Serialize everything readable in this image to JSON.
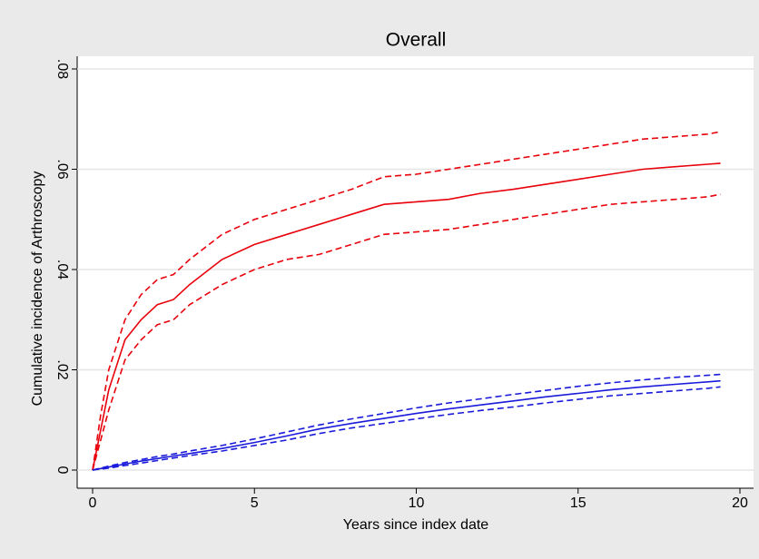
{
  "chart_data": {
    "type": "line",
    "title": "Overall",
    "x_label": "Years since index date",
    "y_label": "Cumulative incidence of Arthroscopy",
    "x": [
      0,
      0.25,
      0.5,
      1,
      1.5,
      2,
      2.5,
      3,
      4,
      5,
      6,
      7,
      8,
      9,
      10,
      11,
      12,
      13,
      14,
      15,
      16,
      17,
      18,
      19,
      19.4
    ],
    "series": [
      {
        "color": "#e8000b",
        "dash": false,
        "values": [
          0,
          0.008,
          0.016,
          0.026,
          0.03,
          0.033,
          0.034,
          0.037,
          0.042,
          0.045,
          0.047,
          0.049,
          0.051,
          0.053,
          0.0535,
          0.054,
          0.0552,
          0.056,
          0.057,
          0.058,
          0.059,
          0.06,
          0.0605,
          0.061,
          0.0612
        ]
      },
      {
        "color": "#e8000b",
        "dash": true,
        "values": [
          0,
          0.011,
          0.02,
          0.03,
          0.035,
          0.038,
          0.039,
          0.042,
          0.047,
          0.05,
          0.052,
          0.054,
          0.056,
          0.0585,
          0.059,
          0.06,
          0.061,
          0.062,
          0.063,
          0.064,
          0.065,
          0.066,
          0.0665,
          0.067,
          0.0675
        ]
      },
      {
        "color": "#e8000b",
        "dash": true,
        "values": [
          0,
          0.006,
          0.012,
          0.022,
          0.026,
          0.029,
          0.03,
          0.033,
          0.037,
          0.04,
          0.042,
          0.043,
          0.045,
          0.047,
          0.0475,
          0.048,
          0.049,
          0.05,
          0.051,
          0.052,
          0.053,
          0.0535,
          0.054,
          0.0545,
          0.055
        ]
      },
      {
        "color": "#1a1adb",
        "dash": false,
        "values": [
          0,
          0.0003,
          0.0006,
          0.0012,
          0.0018,
          0.0023,
          0.0028,
          0.0033,
          0.0043,
          0.0055,
          0.0068,
          0.0082,
          0.0093,
          0.0103,
          0.0113,
          0.0122,
          0.013,
          0.0138,
          0.0146,
          0.0153,
          0.016,
          0.0166,
          0.0171,
          0.0176,
          0.0178
        ]
      },
      {
        "color": "#1a1adb",
        "dash": true,
        "values": [
          0,
          0.0004,
          0.0008,
          0.0015,
          0.0021,
          0.0027,
          0.0032,
          0.0038,
          0.0049,
          0.0062,
          0.0076,
          0.009,
          0.0102,
          0.0113,
          0.0124,
          0.0134,
          0.0142,
          0.0151,
          0.0159,
          0.0167,
          0.0174,
          0.018,
          0.0185,
          0.0189,
          0.0191
        ]
      },
      {
        "color": "#1a1adb",
        "dash": true,
        "values": [
          0,
          0.0002,
          0.0004,
          0.0009,
          0.0014,
          0.0019,
          0.0024,
          0.0029,
          0.0038,
          0.0049,
          0.006,
          0.0073,
          0.0084,
          0.0093,
          0.0102,
          0.0111,
          0.0119,
          0.0126,
          0.0134,
          0.0141,
          0.0148,
          0.0153,
          0.0158,
          0.0163,
          0.0166
        ]
      }
    ],
    "xlim": [
      0,
      20
    ],
    "xticks": [
      0,
      5,
      10,
      15,
      20
    ],
    "ylim": [
      0,
      0.08
    ],
    "yticks": [
      0,
      {
        "value": 0.02,
        "label": ".02"
      },
      {
        "value": 0.04,
        "label": ".04"
      },
      {
        "value": 0.06,
        "label": ".06"
      },
      {
        "value": 0.08,
        "label": ".08"
      }
    ],
    "grid": true
  }
}
